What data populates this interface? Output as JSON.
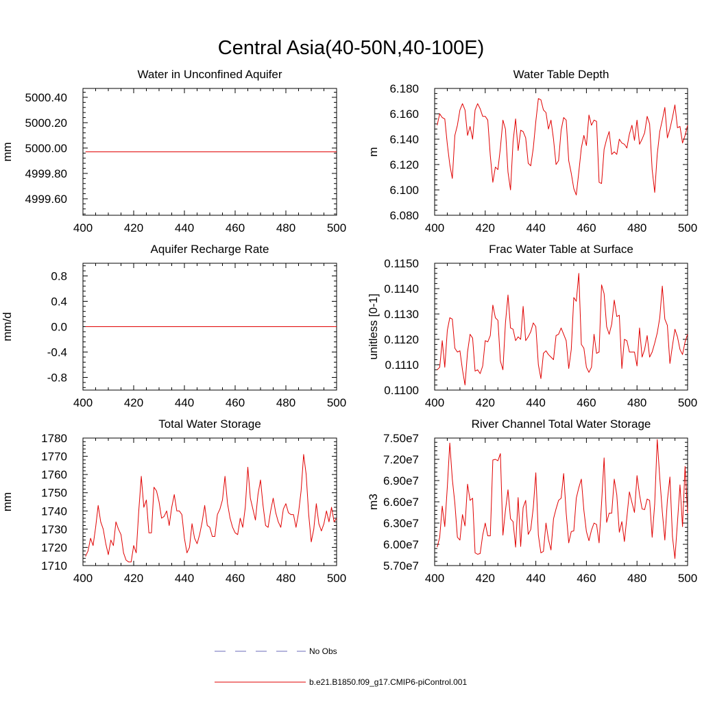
{
  "figure": {
    "title": "Central Asia(40-50N,40-100E)",
    "legend": [
      {
        "label": "No Obs",
        "color": "#6a6ab8",
        "style": "dashed"
      },
      {
        "label": "b.e21.B1850.f09_g17.CMIP6-piControl.001",
        "color": "#e00000",
        "style": "solid"
      }
    ]
  },
  "chart_data": [
    {
      "type": "line",
      "title": "Water in Unconfined Aquifer",
      "ylabel": "mm",
      "xlim": [
        400,
        500
      ],
      "ylim": [
        4999.47,
        5000.47
      ],
      "xticks": [
        400,
        420,
        440,
        460,
        480,
        500
      ],
      "xtick_labels": [
        "400",
        "420",
        "440",
        "460",
        "480",
        "500"
      ],
      "yticks": [
        4999.6,
        4999.8,
        5000.0,
        5000.2,
        5000.4
      ],
      "ytick_labels": [
        "4999.60",
        "4999.80",
        "5000.00",
        "5000.20",
        "5000.40"
      ],
      "series": [
        {
          "color": "#e00000",
          "x": [
            401,
            500
          ],
          "values": [
            4999.97,
            4999.97
          ]
        }
      ]
    },
    {
      "type": "line",
      "title": "Water Table Depth",
      "ylabel": "m",
      "xlim": [
        400,
        500
      ],
      "ylim": [
        6.08,
        6.18
      ],
      "xticks": [
        400,
        420,
        440,
        460,
        480,
        500
      ],
      "xtick_labels": [
        "400",
        "420",
        "440",
        "460",
        "480",
        "500"
      ],
      "yticks": [
        6.08,
        6.1,
        6.12,
        6.14,
        6.16,
        6.18
      ],
      "ytick_labels": [
        "6.080",
        "6.100",
        "6.120",
        "6.140",
        "6.160",
        "6.180"
      ],
      "series": [
        {
          "color": "#e00000",
          "x_start": 401,
          "x_step": 1,
          "values": [
            6.151,
            6.16,
            6.157,
            6.156,
            6.136,
            6.12,
            6.109,
            6.143,
            6.151,
            6.163,
            6.168,
            6.163,
            6.143,
            6.15,
            6.14,
            6.163,
            6.168,
            6.164,
            6.158,
            6.158,
            6.155,
            6.127,
            6.106,
            6.118,
            6.116,
            6.133,
            6.155,
            6.148,
            6.114,
            6.1,
            6.138,
            6.156,
            6.131,
            6.147,
            6.146,
            6.141,
            6.121,
            6.119,
            6.133,
            6.154,
            6.172,
            6.171,
            6.163,
            6.161,
            6.148,
            6.155,
            6.14,
            6.12,
            6.123,
            6.147,
            6.157,
            6.155,
            6.123,
            6.113,
            6.101,
            6.096,
            6.114,
            6.133,
            6.143,
            6.135,
            6.159,
            6.151,
            6.155,
            6.154,
            6.106,
            6.105,
            6.132,
            6.14,
            6.146,
            6.128,
            6.13,
            6.128,
            6.14,
            6.137,
            6.136,
            6.133,
            6.144,
            6.151,
            6.139,
            6.155,
            6.136,
            6.14,
            6.145,
            6.158,
            6.152,
            6.116,
            6.098,
            6.128,
            6.146,
            6.155,
            6.165,
            6.141,
            6.148,
            6.157,
            6.167,
            6.149,
            6.15,
            6.137,
            6.143,
            6.151
          ]
        }
      ]
    },
    {
      "type": "line",
      "title": "Aquifer Recharge Rate",
      "ylabel": "mm/d",
      "xlim": [
        400,
        500
      ],
      "ylim": [
        -1.0,
        1.0
      ],
      "xticks": [
        400,
        420,
        440,
        460,
        480,
        500
      ],
      "xtick_labels": [
        "400",
        "420",
        "440",
        "460",
        "480",
        "500"
      ],
      "yticks": [
        -0.8,
        -0.4,
        0.0,
        0.4,
        0.8
      ],
      "ytick_labels": [
        "-0.8",
        "-0.4",
        "0.0",
        "0.4",
        "0.8"
      ],
      "series": [
        {
          "color": "#e00000",
          "x": [
            401,
            500
          ],
          "values": [
            0.0,
            0.0
          ]
        }
      ]
    },
    {
      "type": "line",
      "title": "Frac Water Table at Surface",
      "ylabel": "unitless [0-1]",
      "xlim": [
        400,
        500
      ],
      "ylim": [
        0.11,
        0.115
      ],
      "xticks": [
        400,
        420,
        440,
        460,
        480,
        500
      ],
      "xtick_labels": [
        "400",
        "420",
        "440",
        "460",
        "480",
        "500"
      ],
      "yticks": [
        0.11,
        0.111,
        0.112,
        0.113,
        0.114,
        0.115
      ],
      "ytick_labels": [
        "0.1100",
        "0.1110",
        "0.1120",
        "0.1130",
        "0.1140",
        "0.1150"
      ],
      "series": [
        {
          "color": "#e00000",
          "x_start": 401,
          "x_step": 1,
          "values": [
            0.1108,
            0.1109,
            0.11195,
            0.1109,
            0.11235,
            0.11285,
            0.1128,
            0.11165,
            0.1115,
            0.11155,
            0.1108,
            0.1102,
            0.1115,
            0.1122,
            0.11205,
            0.11075,
            0.1108,
            0.11065,
            0.11095,
            0.11195,
            0.1119,
            0.11215,
            0.11335,
            0.11285,
            0.11275,
            0.11115,
            0.1108,
            0.11265,
            0.11375,
            0.11245,
            0.1124,
            0.11195,
            0.1121,
            0.112,
            0.1133,
            0.11195,
            0.1121,
            0.1123,
            0.11265,
            0.1125,
            0.111,
            0.11045,
            0.11145,
            0.11155,
            0.1114,
            0.1113,
            0.1112,
            0.11215,
            0.1122,
            0.11245,
            0.1122,
            0.11195,
            0.11085,
            0.1116,
            0.11365,
            0.1135,
            0.1146,
            0.1118,
            0.11165,
            0.1109,
            0.1107,
            0.1109,
            0.1122,
            0.11145,
            0.1115,
            0.11415,
            0.1138,
            0.1125,
            0.1122,
            0.1126,
            0.11355,
            0.1129,
            0.11295,
            0.11085,
            0.112,
            0.11195,
            0.1115,
            0.1115,
            0.1115,
            0.11095,
            0.11245,
            0.1113,
            0.1116,
            0.11215,
            0.1113,
            0.1115,
            0.11185,
            0.11225,
            0.11285,
            0.1141,
            0.1128,
            0.11255,
            0.11105,
            0.11175,
            0.1124,
            0.1121,
            0.1116,
            0.1114,
            0.1119,
            0.1122
          ]
        }
      ]
    },
    {
      "type": "line",
      "title": "Total Water Storage",
      "ylabel": "mm",
      "xlim": [
        400,
        500
      ],
      "ylim": [
        1710,
        1780
      ],
      "xticks": [
        400,
        420,
        440,
        460,
        480,
        500
      ],
      "xtick_labels": [
        "400",
        "420",
        "440",
        "460",
        "480",
        "500"
      ],
      "yticks": [
        1710,
        1720,
        1730,
        1740,
        1750,
        1760,
        1770,
        1780
      ],
      "ytick_labels": [
        "1710",
        "1720",
        "1730",
        "1740",
        "1750",
        "1760",
        "1770",
        "1780"
      ],
      "series": [
        {
          "color": "#e00000",
          "x_start": 401,
          "x_step": 1,
          "values": [
            1715,
            1718,
            1725,
            1721,
            1731,
            1743,
            1734,
            1730,
            1722,
            1716,
            1724,
            1721,
            1734,
            1730,
            1727,
            1717,
            1713,
            1712,
            1712,
            1721,
            1717,
            1740,
            1759,
            1742,
            1746,
            1728,
            1728,
            1753,
            1751,
            1745,
            1736,
            1737,
            1740,
            1732,
            1742,
            1749,
            1740,
            1740,
            1738,
            1725,
            1717,
            1720,
            1733,
            1725,
            1722,
            1727,
            1734,
            1743,
            1732,
            1731,
            1726,
            1726,
            1738,
            1741,
            1746,
            1759,
            1744,
            1736,
            1731,
            1728,
            1727,
            1736,
            1731,
            1742,
            1764,
            1747,
            1741,
            1735,
            1749,
            1757,
            1743,
            1732,
            1731,
            1740,
            1747,
            1739,
            1734,
            1731,
            1741,
            1744,
            1739,
            1738,
            1738,
            1731,
            1739,
            1751,
            1771,
            1760,
            1738,
            1723,
            1730,
            1744,
            1733,
            1729,
            1733,
            1740,
            1734,
            1742,
            1734,
            1736
          ]
        }
      ]
    },
    {
      "type": "line",
      "title": "River Channel Total Water Storage",
      "ylabel": "m3",
      "xlim": [
        400,
        500
      ],
      "ylim": [
        57000000,
        75000000
      ],
      "xticks": [
        400,
        420,
        440,
        460,
        480,
        500
      ],
      "xtick_labels": [
        "400",
        "420",
        "440",
        "460",
        "480",
        "500"
      ],
      "yticks": [
        57000000,
        60000000,
        63000000,
        66000000,
        69000000,
        72000000,
        75000000
      ],
      "ytick_labels": [
        "5.70e7",
        "6.00e7",
        "6.30e7",
        "6.60e7",
        "6.90e7",
        "7.20e7",
        "7.50e7"
      ],
      "series": [
        {
          "color": "#e00000",
          "x_start": 401,
          "x_step": 1,
          "values": [
            59600000,
            61000000,
            65400000,
            62500000,
            68100000,
            74300000,
            69200000,
            65800000,
            61000000,
            60600000,
            64200000,
            62600000,
            68500000,
            66200000,
            66500000,
            58800000,
            58600000,
            58700000,
            61300000,
            63000000,
            61200000,
            61200000,
            71900000,
            72000000,
            71800000,
            72800000,
            61300000,
            64800000,
            67700000,
            63600000,
            63200000,
            59600000,
            66600000,
            59700000,
            65200000,
            66200000,
            61400000,
            62100000,
            65200000,
            70100000,
            61300000,
            58800000,
            59000000,
            63000000,
            60700000,
            59200000,
            63600000,
            65000000,
            66200000,
            66500000,
            70000000,
            64400000,
            60200000,
            61800000,
            61900000,
            66500000,
            68000000,
            69200000,
            64800000,
            61800000,
            60500000,
            62000000,
            63000000,
            62800000,
            60200000,
            65800000,
            72200000,
            63100000,
            64400000,
            64400000,
            69200000,
            67000000,
            61700000,
            63200000,
            60400000,
            63800000,
            67400000,
            65900000,
            64500000,
            69700000,
            67000000,
            65000000,
            64900000,
            66400000,
            66200000,
            61000000,
            65700000,
            74800000,
            69400000,
            64600000,
            60600000,
            66200000,
            69500000,
            61100000,
            58000000,
            63100000,
            68400000,
            62500000,
            71000000,
            64400000
          ]
        }
      ]
    }
  ]
}
